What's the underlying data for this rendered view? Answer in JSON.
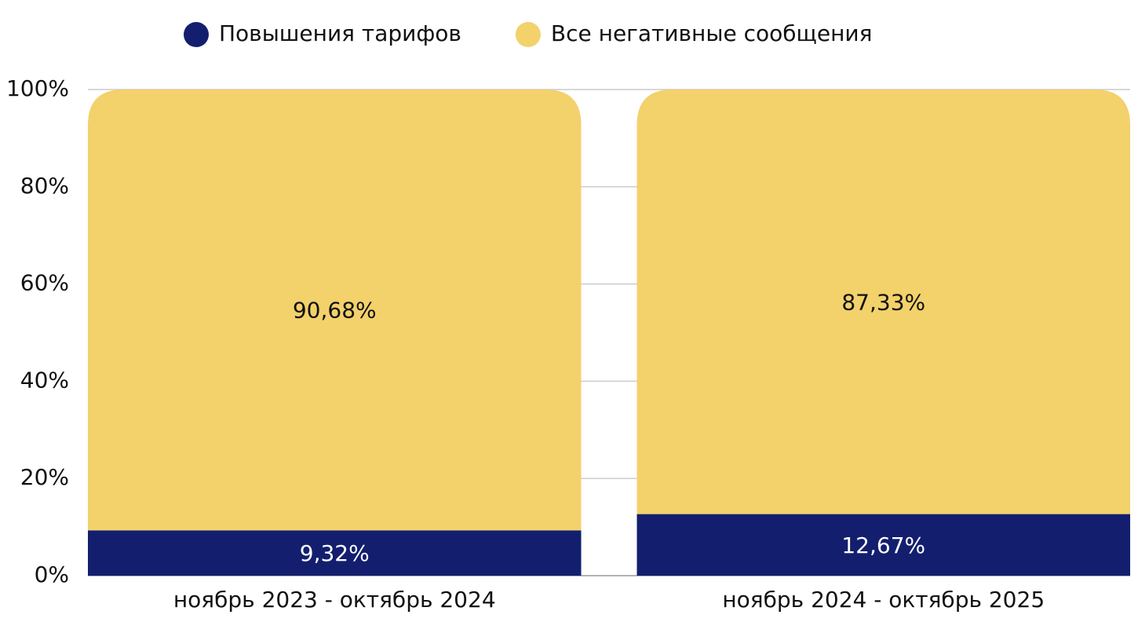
{
  "chart_data": {
    "type": "stacked_bar",
    "categories": [
      "ноябрь 2023 - октябрь 2024",
      "ноябрь 2024 - октябрь 2025"
    ],
    "series": [
      {
        "name": "Повышения тарифов",
        "color": "#131f6e",
        "values": [
          9.32,
          12.67
        ],
        "value_labels": [
          "9,32%",
          "12,67%"
        ]
      },
      {
        "name": "Все негативные сообщения",
        "color": "#f3d16b",
        "values": [
          90.68,
          87.33
        ],
        "value_labels": [
          "90,68%",
          "87,33%"
        ]
      }
    ],
    "ylim": [
      0,
      100
    ],
    "yticks": [
      {
        "value": 0,
        "label": "0%"
      },
      {
        "value": 20,
        "label": "20%"
      },
      {
        "value": 40,
        "label": "40%"
      },
      {
        "value": 60,
        "label": "60%"
      },
      {
        "value": 80,
        "label": "80%"
      },
      {
        "value": 100,
        "label": "100%"
      }
    ],
    "grid": true,
    "legend": "top"
  }
}
